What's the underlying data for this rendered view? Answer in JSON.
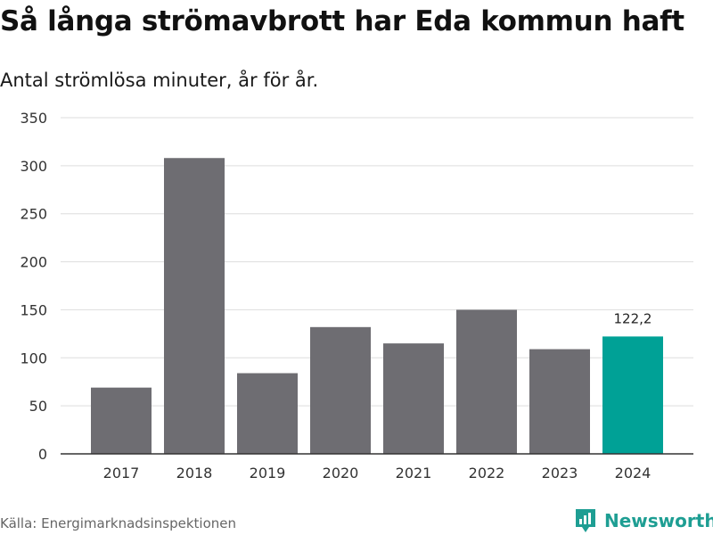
{
  "header": {
    "title": "Så långa strömavbrott har Eda kommun haft",
    "subtitle": "Antal strömlösa minuter, år för år."
  },
  "footer": {
    "source": "Källa: Energimarknadsinspektionen",
    "brand": "Newsworthy"
  },
  "colors": {
    "bar": "#6e6d72",
    "highlight": "#00a196",
    "grid": "#dddddd",
    "axis": "#333333",
    "brand": "#1e9e93"
  },
  "chart_data": {
    "type": "bar",
    "title": "Så långa strömavbrott har Eda kommun haft",
    "subtitle": "Antal strömlösa minuter, år för år.",
    "xlabel": "",
    "ylabel": "",
    "categories": [
      "2017",
      "2018",
      "2019",
      "2020",
      "2021",
      "2022",
      "2023",
      "2024"
    ],
    "values": [
      69,
      308,
      84,
      132,
      115,
      150,
      109,
      122.2
    ],
    "ylim": [
      0,
      350
    ],
    "yticks": [
      0,
      50,
      100,
      150,
      200,
      250,
      300,
      350
    ],
    "grid": true,
    "highlight_index": 7,
    "annotations": [
      {
        "category": "2024",
        "label": "122,2"
      }
    ]
  }
}
